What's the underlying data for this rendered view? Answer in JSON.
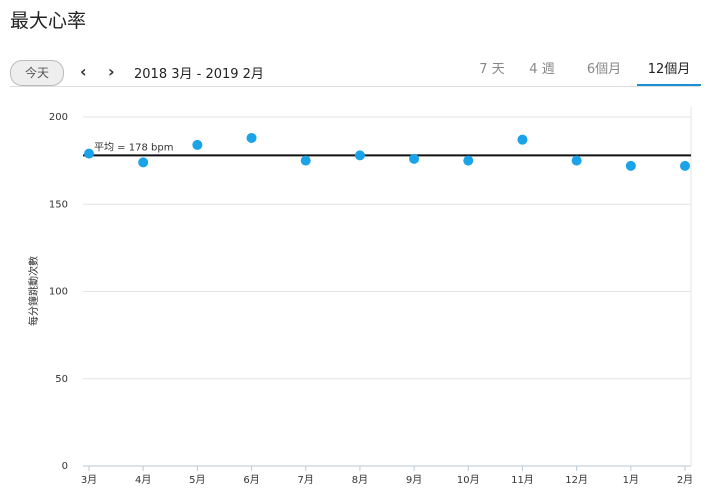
{
  "header": {
    "title": "最大心率",
    "today_button": "今天",
    "date_range": "2018 3月 - 2019 2月",
    "tabs": [
      "7 天",
      "4 週",
      "6個月",
      "12個月"
    ]
  },
  "chart_data": {
    "type": "scatter",
    "y_label": "每分鐘跳動次數",
    "categories": [
      "3月",
      "4月",
      "5月",
      "6月",
      "7月",
      "8月",
      "9月",
      "10月",
      "11月",
      "12月",
      "1月",
      "2月"
    ],
    "values": [
      179,
      174,
      184,
      188,
      175,
      178,
      176,
      175,
      187,
      175,
      172,
      172
    ],
    "color": "#1aa3e8",
    "average": 178,
    "average_label": "平均 = 178 bpm",
    "ylim": [
      0,
      200
    ],
    "yticks": [
      0,
      50,
      100,
      150,
      200
    ],
    "grid": true
  }
}
